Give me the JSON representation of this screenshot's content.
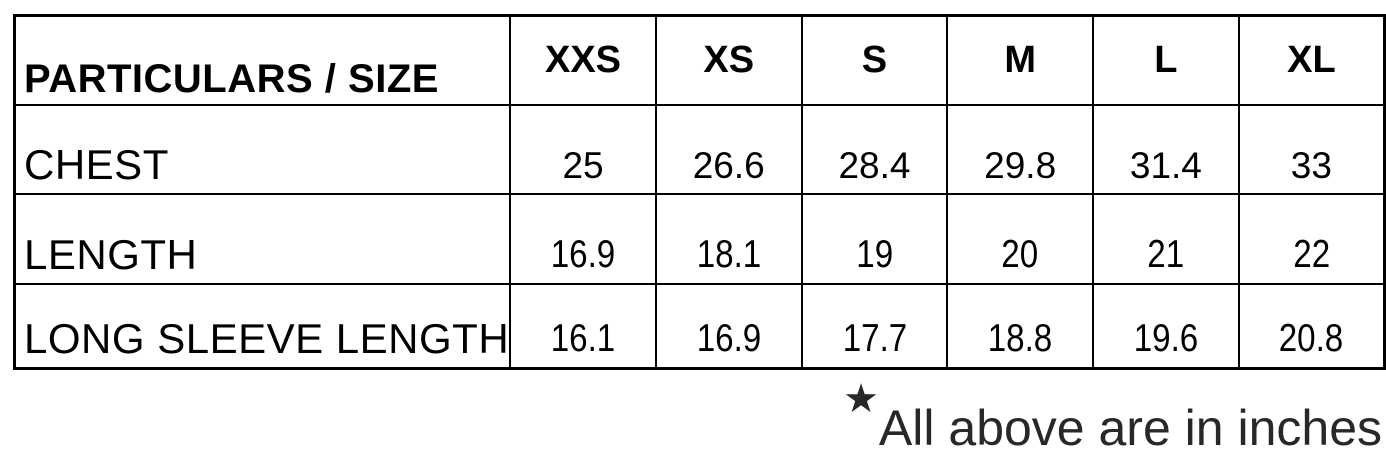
{
  "table": {
    "header": {
      "particulars_label": "PARTICULARS / SIZE",
      "sizes": [
        "XXS",
        "XS",
        "S",
        "M",
        "L",
        "XL"
      ]
    },
    "rows": [
      {
        "label": "CHEST",
        "values": [
          "25",
          "26.6",
          "28.4",
          "29.8",
          "31.4",
          "33"
        ]
      },
      {
        "label": "LENGTH",
        "values": [
          "16.9",
          "18.1",
          "19",
          "20",
          "21",
          "22"
        ]
      },
      {
        "label": "LONG SLEEVE LENGTH",
        "values": [
          "16.1",
          "16.9",
          "17.7",
          "18.8",
          "19.6",
          "20.8"
        ]
      }
    ]
  },
  "footnote": {
    "star": "★",
    "text": "All above are in inches"
  },
  "colors": {
    "background": "#ffffff",
    "table_border": "#000000",
    "table_text": "#000000",
    "footnote_text": "#282828"
  }
}
